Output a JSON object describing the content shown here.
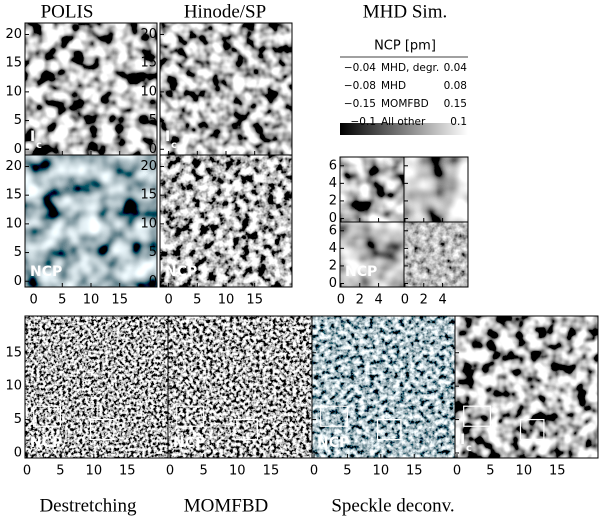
{
  "titles": {
    "top": [
      "POLIS",
      "Hinode/SP",
      "MHD Sim."
    ],
    "bottom": [
      "Destretching",
      "MOMFBD",
      "Speckle deconv."
    ]
  },
  "axes": {
    "top": {
      "xlim": [
        -1.5,
        21.5
      ],
      "ylim": [
        -1,
        22
      ],
      "xticks": [
        0,
        5,
        10,
        15
      ],
      "yticks": [
        0,
        5,
        10,
        15,
        20
      ]
    },
    "mhd": {
      "xlim": [
        -0.1,
        6.7
      ],
      "ylim": [
        -0.4,
        7
      ],
      "xticks": [
        0,
        2,
        4
      ],
      "yticks": [
        0,
        2,
        4,
        6
      ]
    },
    "bottom": {
      "xlim": [
        -0.3,
        21.1
      ],
      "ylim": [
        -0.75,
        20.5
      ],
      "xticks": [
        0,
        5,
        10,
        15
      ],
      "yticks": [
        0,
        5,
        10,
        15
      ]
    }
  },
  "labels": {
    "intensity": {
      "main": "I",
      "sub": "c"
    },
    "ncp": "NCP"
  },
  "legend": {
    "title": "NCP [pm]",
    "rows": [
      [
        "−0.04",
        "MHD, degr.",
        "0.04"
      ],
      [
        "−0.08",
        "MHD",
        "0.08"
      ],
      [
        "−0.15",
        "MOMFBD",
        "0.15"
      ],
      [
        "−0.1",
        "All other",
        "0.1"
      ]
    ]
  }
}
